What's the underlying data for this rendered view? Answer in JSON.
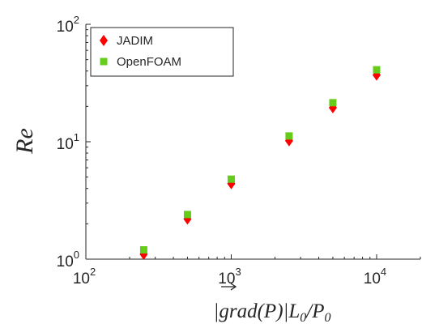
{
  "chart_data": {
    "type": "scatter",
    "xlabel": "|grad(P)|L0/P0",
    "xlabel_parts": {
      "bar": "|",
      "grad": "grad",
      "mid": "(P)|L",
      "sub0": "0",
      "slash": "/P",
      "sub1": "0"
    },
    "ylabel": "Re",
    "xscale": "log",
    "yscale": "log",
    "xlim": [
      100,
      20000
    ],
    "ylim": [
      1,
      100
    ],
    "x_ticks": [
      {
        "value": 100,
        "base": "10",
        "exp": "2"
      },
      {
        "value": 1000,
        "base": "10",
        "exp": "3"
      },
      {
        "value": 10000,
        "base": "10",
        "exp": "4"
      }
    ],
    "y_ticks": [
      {
        "value": 1,
        "base": "10",
        "exp": "0"
      },
      {
        "value": 10,
        "base": "10",
        "exp": "1"
      },
      {
        "value": 100,
        "base": "10",
        "exp": "2"
      }
    ],
    "grid": false,
    "legend_position": "top-left",
    "series": [
      {
        "name": "JADIM",
        "marker": "diamond",
        "color": "#ff0000",
        "x": [
          250,
          500,
          1000,
          2500,
          5000,
          10000
        ],
        "y": [
          1.1,
          2.2,
          4.4,
          10.2,
          19.5,
          37.0
        ]
      },
      {
        "name": "OpenFOAM",
        "marker": "square",
        "color": "#66cc1a",
        "x": [
          250,
          500,
          1000,
          2500,
          5000,
          10000
        ],
        "y": [
          1.2,
          2.4,
          4.8,
          11.2,
          21.5,
          41.0
        ]
      }
    ]
  }
}
